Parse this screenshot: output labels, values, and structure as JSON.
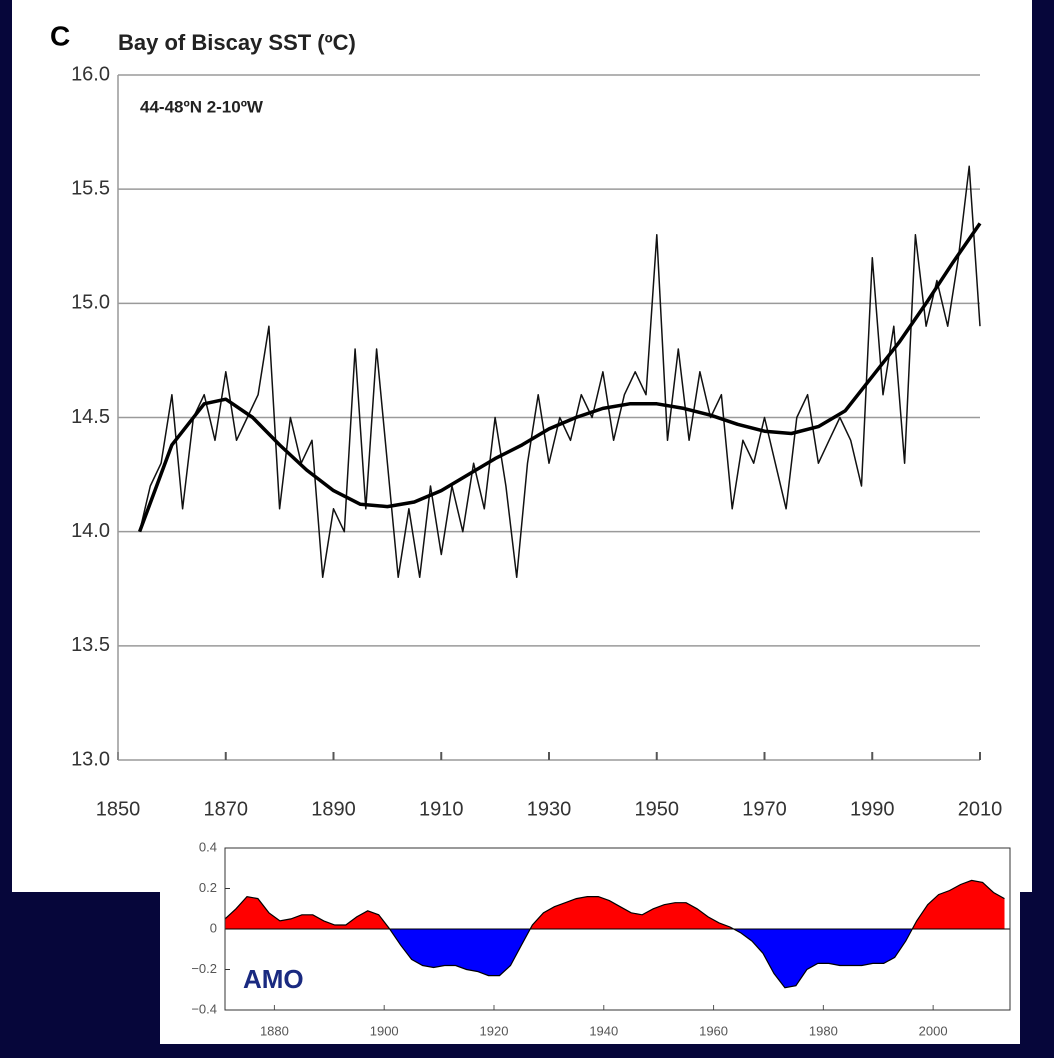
{
  "chart_data": [
    {
      "type": "line",
      "panel_label": "C",
      "title": "Bay of Biscay SST  (ºC)",
      "annotation": "44-48ºN 2-10ºW",
      "xlim": [
        1850,
        2010
      ],
      "xticks": [
        1850,
        1870,
        1890,
        1910,
        1930,
        1950,
        1970,
        1990,
        2010
      ],
      "ylim": [
        13,
        16
      ],
      "yticks": [
        {
          "value": 13,
          "label": "13.0"
        },
        {
          "value": 13.5,
          "label": "13.5"
        },
        {
          "value": 14,
          "label": "14.0"
        },
        {
          "value": 14.5,
          "label": "14.5"
        },
        {
          "value": 15,
          "label": "15.0"
        },
        {
          "value": 15.5,
          "label": "15.5"
        },
        {
          "value": 16,
          "label": "16.0"
        }
      ],
      "grid": true,
      "series": [
        {
          "color": "#111111",
          "x": [
            1854,
            1856,
            1858,
            1860,
            1862,
            1864,
            1866,
            1868,
            1870,
            1872,
            1874,
            1876,
            1878,
            1880,
            1882,
            1884,
            1886,
            1888,
            1890,
            1892,
            1894,
            1896,
            1898,
            1900,
            1902,
            1904,
            1906,
            1908,
            1910,
            1912,
            1914,
            1916,
            1918,
            1920,
            1922,
            1924,
            1926,
            1928,
            1930,
            1932,
            1934,
            1936,
            1938,
            1940,
            1942,
            1944,
            1946,
            1948,
            1950,
            1952,
            1954,
            1956,
            1958,
            1960,
            1962,
            1964,
            1966,
            1968,
            1970,
            1972,
            1974,
            1976,
            1978,
            1980,
            1982,
            1984,
            1986,
            1988,
            1990,
            1992,
            1994,
            1996,
            1998,
            2000,
            2002,
            2004,
            2006,
            2008,
            2010
          ],
          "values": [
            14.0,
            14.2,
            14.3,
            14.6,
            14.1,
            14.5,
            14.6,
            14.4,
            14.7,
            14.4,
            14.5,
            14.6,
            14.9,
            14.1,
            14.5,
            14.3,
            14.4,
            13.8,
            14.1,
            14.0,
            14.8,
            14.1,
            14.8,
            14.3,
            13.8,
            14.1,
            13.8,
            14.2,
            13.9,
            14.2,
            14.0,
            14.3,
            14.1,
            14.5,
            14.2,
            13.8,
            14.3,
            14.6,
            14.3,
            14.5,
            14.4,
            14.6,
            14.5,
            14.7,
            14.4,
            14.6,
            14.7,
            14.6,
            15.3,
            14.4,
            14.8,
            14.4,
            14.7,
            14.5,
            14.6,
            14.1,
            14.4,
            14.3,
            14.5,
            14.3,
            14.1,
            14.5,
            14.6,
            14.3,
            14.4,
            14.5,
            14.4,
            14.2,
            15.2,
            14.6,
            14.9,
            14.3,
            15.3,
            14.9,
            15.1,
            14.9,
            15.2,
            15.6,
            14.9
          ]
        },
        {
          "color": "#000000",
          "x": [
            1854,
            1860,
            1866,
            1870,
            1875,
            1880,
            1885,
            1890,
            1895,
            1900,
            1905,
            1910,
            1915,
            1920,
            1925,
            1930,
            1935,
            1940,
            1945,
            1950,
            1955,
            1960,
            1965,
            1970,
            1975,
            1980,
            1985,
            1990,
            1995,
            2000,
            2005,
            2010
          ],
          "values": [
            14.0,
            14.38,
            14.56,
            14.58,
            14.5,
            14.38,
            14.27,
            14.18,
            14.12,
            14.11,
            14.13,
            14.18,
            14.25,
            14.32,
            14.38,
            14.45,
            14.5,
            14.54,
            14.56,
            14.56,
            14.54,
            14.51,
            14.47,
            14.44,
            14.43,
            14.46,
            14.53,
            14.68,
            14.83,
            15.0,
            15.18,
            15.35
          ]
        }
      ]
    },
    {
      "type": "area",
      "annotation": "AMO",
      "xlim": [
        1871,
        2014
      ],
      "xticks": [
        1880,
        1900,
        1920,
        1940,
        1960,
        1980,
        2000
      ],
      "ylim": [
        -0.4,
        0.4
      ],
      "yticks": [
        {
          "value": -0.4,
          "label": "−0.4"
        },
        {
          "value": -0.2,
          "label": "−0.2"
        },
        0,
        0.2,
        0.4
      ],
      "colors": {
        "positive": "#ff0000",
        "negative": "#0000ff"
      },
      "x": [
        1871,
        1873,
        1875,
        1877,
        1879,
        1881,
        1883,
        1885,
        1887,
        1889,
        1891,
        1893,
        1895,
        1897,
        1899,
        1901,
        1903,
        1905,
        1907,
        1909,
        1911,
        1913,
        1915,
        1917,
        1919,
        1921,
        1923,
        1925,
        1927,
        1929,
        1931,
        1933,
        1935,
        1937,
        1939,
        1941,
        1943,
        1945,
        1947,
        1949,
        1951,
        1953,
        1955,
        1957,
        1959,
        1961,
        1963,
        1965,
        1967,
        1969,
        1971,
        1973,
        1975,
        1977,
        1979,
        1981,
        1983,
        1985,
        1987,
        1989,
        1991,
        1993,
        1995,
        1997,
        1999,
        2001,
        2003,
        2005,
        2007,
        2009,
        2011,
        2013
      ],
      "values": [
        0.05,
        0.1,
        0.16,
        0.15,
        0.08,
        0.04,
        0.05,
        0.07,
        0.07,
        0.04,
        0.02,
        0.02,
        0.06,
        0.09,
        0.07,
        0.0,
        -0.08,
        -0.15,
        -0.18,
        -0.19,
        -0.18,
        -0.18,
        -0.2,
        -0.21,
        -0.23,
        -0.23,
        -0.18,
        -0.08,
        0.02,
        0.08,
        0.11,
        0.13,
        0.15,
        0.16,
        0.16,
        0.14,
        0.11,
        0.08,
        0.07,
        0.1,
        0.12,
        0.13,
        0.13,
        0.1,
        0.06,
        0.03,
        0.01,
        -0.02,
        -0.06,
        -0.12,
        -0.22,
        -0.29,
        -0.28,
        -0.2,
        -0.17,
        -0.17,
        -0.18,
        -0.18,
        -0.18,
        -0.17,
        -0.17,
        -0.14,
        -0.06,
        0.04,
        0.12,
        0.17,
        0.19,
        0.22,
        0.24,
        0.23,
        0.18,
        0.15
      ]
    }
  ]
}
